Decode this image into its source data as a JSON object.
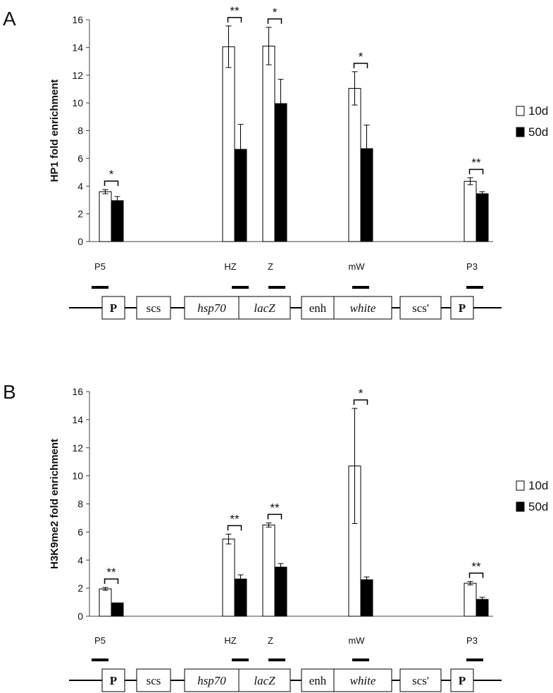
{
  "chart_data": [
    {
      "type": "bar",
      "panel_label": "A",
      "ylabel": "HP1 fold enrichment",
      "ylim": [
        0,
        16
      ],
      "yticks": [
        0,
        2,
        4,
        6,
        8,
        10,
        12,
        14,
        16
      ],
      "categories": [
        "P5",
        "HZ",
        "Z",
        "mW",
        "P3"
      ],
      "series": [
        {
          "name": "10d",
          "color": "#ffffff",
          "values": [
            3.6,
            14.05,
            14.1,
            11.05,
            4.35
          ],
          "errors": [
            0.15,
            1.5,
            1.35,
            1.2,
            0.25
          ]
        },
        {
          "name": "50d",
          "color": "#000000",
          "values": [
            2.95,
            6.65,
            9.95,
            6.7,
            3.45
          ],
          "errors": [
            0.3,
            1.8,
            1.75,
            1.7,
            0.15
          ]
        }
      ],
      "significance": [
        "*",
        "**",
        "*",
        "*",
        "**"
      ],
      "legend_position": "right"
    },
    {
      "type": "bar",
      "panel_label": "B",
      "ylabel": "H3K9me2 fold enrichment",
      "ylim": [
        0,
        16
      ],
      "yticks": [
        0,
        2,
        4,
        6,
        8,
        10,
        12,
        14,
        16
      ],
      "categories": [
        "P5",
        "HZ",
        "Z",
        "mW",
        "P3"
      ],
      "series": [
        {
          "name": "10d",
          "color": "#ffffff",
          "values": [
            1.95,
            5.5,
            6.5,
            10.7,
            2.35
          ],
          "errors": [
            0.1,
            0.35,
            0.15,
            4.1,
            0.12
          ]
        },
        {
          "name": "50d",
          "color": "#000000",
          "values": [
            0.95,
            2.65,
            3.5,
            2.6,
            1.2
          ],
          "errors": [
            0.0,
            0.3,
            0.25,
            0.2,
            0.15
          ]
        }
      ],
      "significance": [
        "**",
        "**",
        "**",
        "*",
        "**"
      ],
      "legend_position": "right"
    }
  ],
  "construct_map": {
    "boxes": [
      "P",
      "scs",
      "hsp70",
      "lacZ",
      "enh",
      "white",
      "scs'",
      "P"
    ]
  }
}
